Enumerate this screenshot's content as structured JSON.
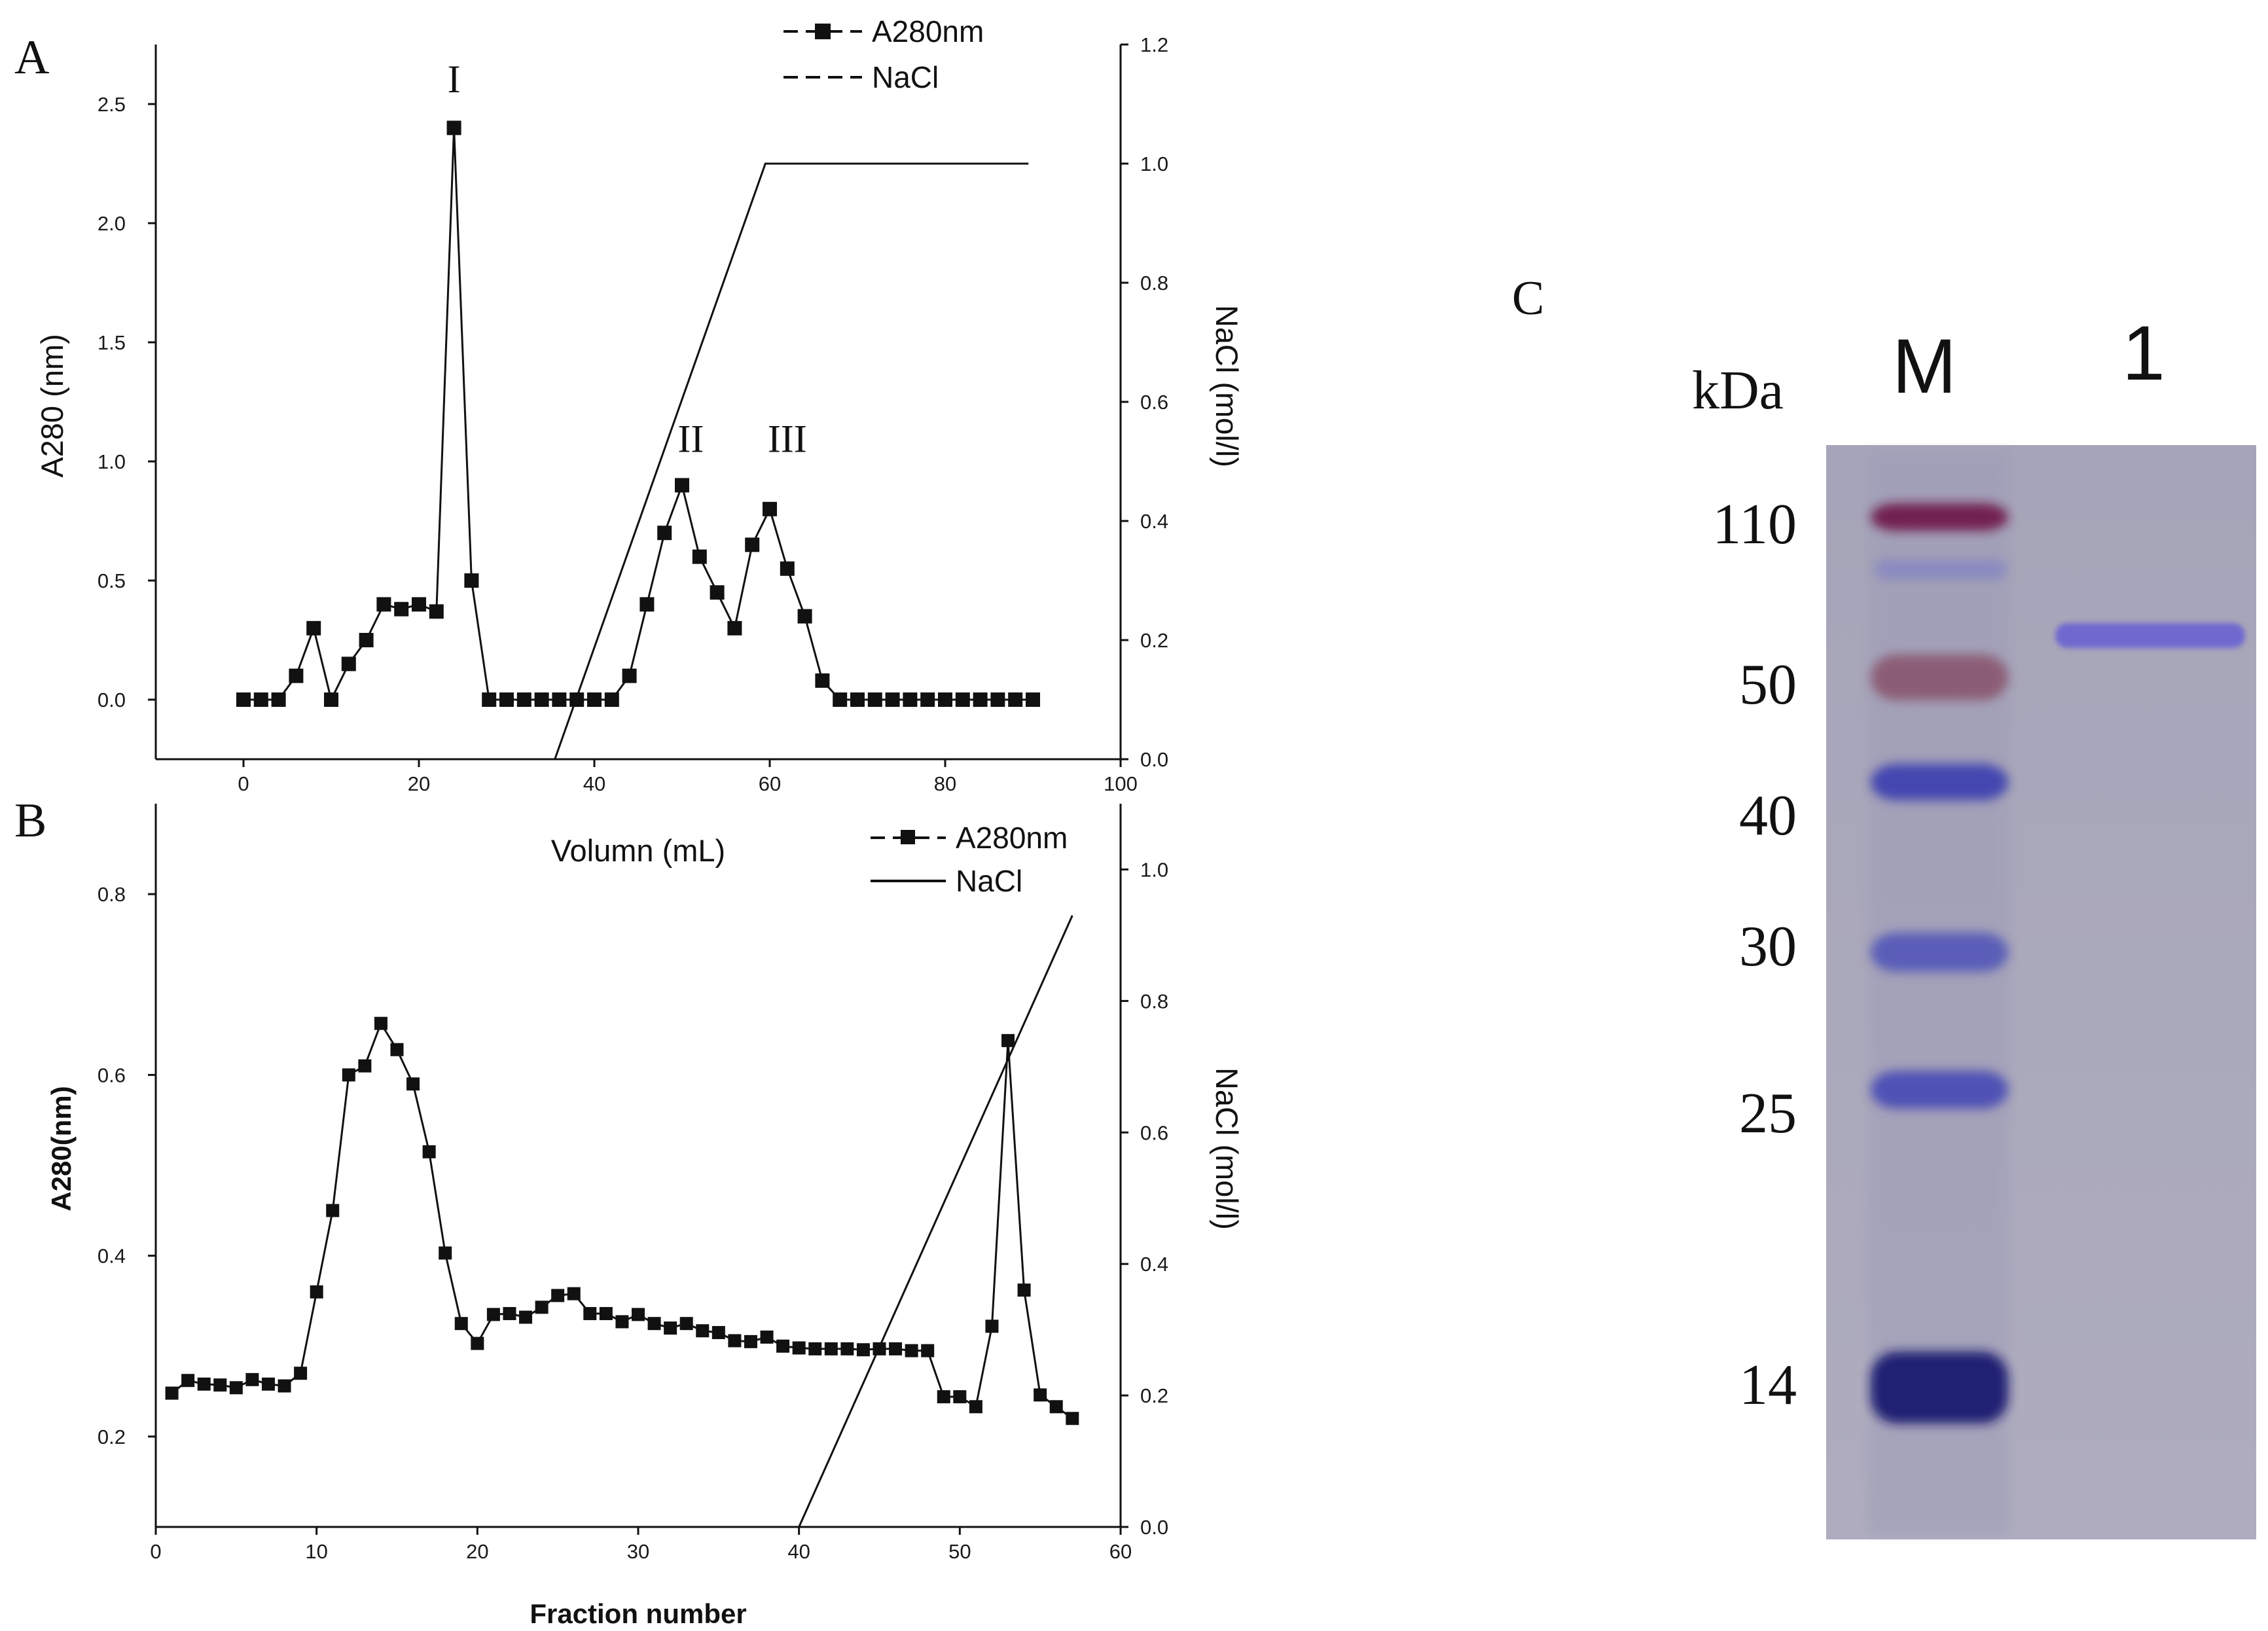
{
  "chart_data": [
    {
      "panel": "A",
      "type": "line",
      "xlabel": "Volumn (mL)",
      "ylabel": "A280 (nm)",
      "y2label": "NaCl (mol/l)",
      "xlim": [
        -10,
        100
      ],
      "ylim": [
        -0.25,
        2.75
      ],
      "y2lim": [
        0,
        1.2
      ],
      "xticks": [
        0,
        20,
        40,
        60,
        80,
        100
      ],
      "yticks": [
        0.0,
        0.5,
        1.0,
        1.5,
        2.0,
        2.5
      ],
      "y2ticks": [
        0.0,
        0.2,
        0.4,
        0.6,
        0.8,
        1.0,
        1.2
      ],
      "xticklabels": [
        "0",
        "20",
        "40",
        "60",
        "80",
        "100"
      ],
      "yticklabels": [
        "0.0",
        "0.5",
        "1.0",
        "1.5",
        "2.0",
        "2.5"
      ],
      "y2ticklabels": [
        "0.0",
        "0.2",
        "0.4",
        "0.6",
        "0.8",
        "1.0",
        "1.2"
      ],
      "legend": {
        "placement": "top-right",
        "entries": [
          "A280nm",
          "NaCl"
        ]
      },
      "series": [
        {
          "name": "A280nm",
          "axis": "left",
          "style": "line-square-markers",
          "x": [
            0,
            2,
            4,
            6,
            8,
            10,
            12,
            14,
            16,
            18,
            20,
            22,
            24,
            26,
            28,
            30,
            32,
            34,
            36,
            38,
            40,
            42,
            44,
            46,
            48,
            50,
            52,
            54,
            56,
            58,
            60,
            62,
            64,
            66,
            68,
            70,
            72,
            74,
            76,
            78,
            80,
            82,
            84,
            86,
            88,
            90
          ],
          "y": [
            0.0,
            0.0,
            0.0,
            0.1,
            0.3,
            0.0,
            0.15,
            0.25,
            0.4,
            0.38,
            0.4,
            0.37,
            2.4,
            0.5,
            0.0,
            0.0,
            0.0,
            0.0,
            0.0,
            0.0,
            0.0,
            0.0,
            0.1,
            0.4,
            0.7,
            0.9,
            0.6,
            0.45,
            0.3,
            0.65,
            0.8,
            0.55,
            0.35,
            0.08,
            0.0,
            0.0,
            0.0,
            0.0,
            0.0,
            0.0,
            0.0,
            0.0,
            0.0,
            0.0,
            0.0,
            0.0
          ]
        },
        {
          "name": "NaCl",
          "axis": "right",
          "style": "solid-line",
          "x": [
            35.5,
            59.5,
            89.5
          ],
          "y": [
            0.0,
            1.0,
            1.0
          ]
        }
      ],
      "annotations": [
        {
          "text": "I",
          "x": 24,
          "y": 2.55
        },
        {
          "text": "II",
          "x": 51,
          "y": 1.04
        },
        {
          "text": "III",
          "x": 62,
          "y": 1.04
        }
      ]
    },
    {
      "panel": "B",
      "type": "line",
      "xlabel": "Fraction number",
      "ylabel": "A280(nm)",
      "y2label": "NaCl (mol/l)",
      "xlim": [
        0,
        60
      ],
      "ylim": [
        0.1,
        0.9
      ],
      "y2lim": [
        0,
        1.1
      ],
      "xticks": [
        0,
        10,
        20,
        30,
        40,
        50,
        60
      ],
      "yticks": [
        0.2,
        0.4,
        0.6,
        0.8
      ],
      "y2ticks": [
        0.0,
        0.2,
        0.4,
        0.6,
        0.8,
        1.0
      ],
      "xticklabels": [
        "0",
        "10",
        "20",
        "30",
        "40",
        "50",
        "60"
      ],
      "yticklabels": [
        "0.2",
        "0.4",
        "0.6",
        "0.8"
      ],
      "y2ticklabels": [
        "0.0",
        "0.2",
        "0.4",
        "0.6",
        "0.8",
        "1.0"
      ],
      "legend": {
        "placement": "top-right",
        "entries": [
          "A280nm",
          "NaCl"
        ]
      },
      "series": [
        {
          "name": "A280nm",
          "axis": "left",
          "style": "line-square-markers",
          "x": [
            1,
            2,
            3,
            4,
            5,
            6,
            7,
            8,
            9,
            10,
            11,
            12,
            13,
            14,
            15,
            16,
            17,
            18,
            19,
            20,
            21,
            22,
            23,
            24,
            25,
            26,
            27,
            28,
            29,
            30,
            31,
            32,
            33,
            34,
            35,
            36,
            37,
            38,
            39,
            40,
            41,
            42,
            43,
            44,
            45,
            46,
            47,
            48,
            49,
            50,
            51,
            52,
            53,
            54,
            55,
            56,
            57
          ],
          "y": [
            0.248,
            0.262,
            0.258,
            0.257,
            0.254,
            0.263,
            0.258,
            0.256,
            0.27,
            0.36,
            0.45,
            0.6,
            0.61,
            0.657,
            0.628,
            0.59,
            0.515,
            0.403,
            0.325,
            0.303,
            0.335,
            0.336,
            0.332,
            0.343,
            0.356,
            0.358,
            0.336,
            0.336,
            0.327,
            0.335,
            0.325,
            0.32,
            0.325,
            0.317,
            0.315,
            0.306,
            0.305,
            0.31,
            0.3,
            0.298,
            0.297,
            0.297,
            0.297,
            0.296,
            0.297,
            0.297,
            0.295,
            0.295,
            0.244,
            0.244,
            0.233,
            0.322,
            0.638,
            0.362,
            0.246,
            0.233,
            0.22
          ]
        },
        {
          "name": "NaCl",
          "axis": "right",
          "style": "solid-line",
          "x": [
            40,
            57
          ],
          "y": [
            0.0,
            0.93
          ]
        }
      ]
    },
    {
      "panel": "C",
      "type": "gel",
      "title": "C",
      "unit_label": "kDa",
      "lanes": [
        "M",
        "1"
      ],
      "marker_kda": [
        110,
        50,
        40,
        30,
        25,
        14
      ],
      "marker_labels": [
        "110",
        "50",
        "40",
        "30",
        "25",
        "14"
      ],
      "sample_band_kda": 55
    }
  ]
}
